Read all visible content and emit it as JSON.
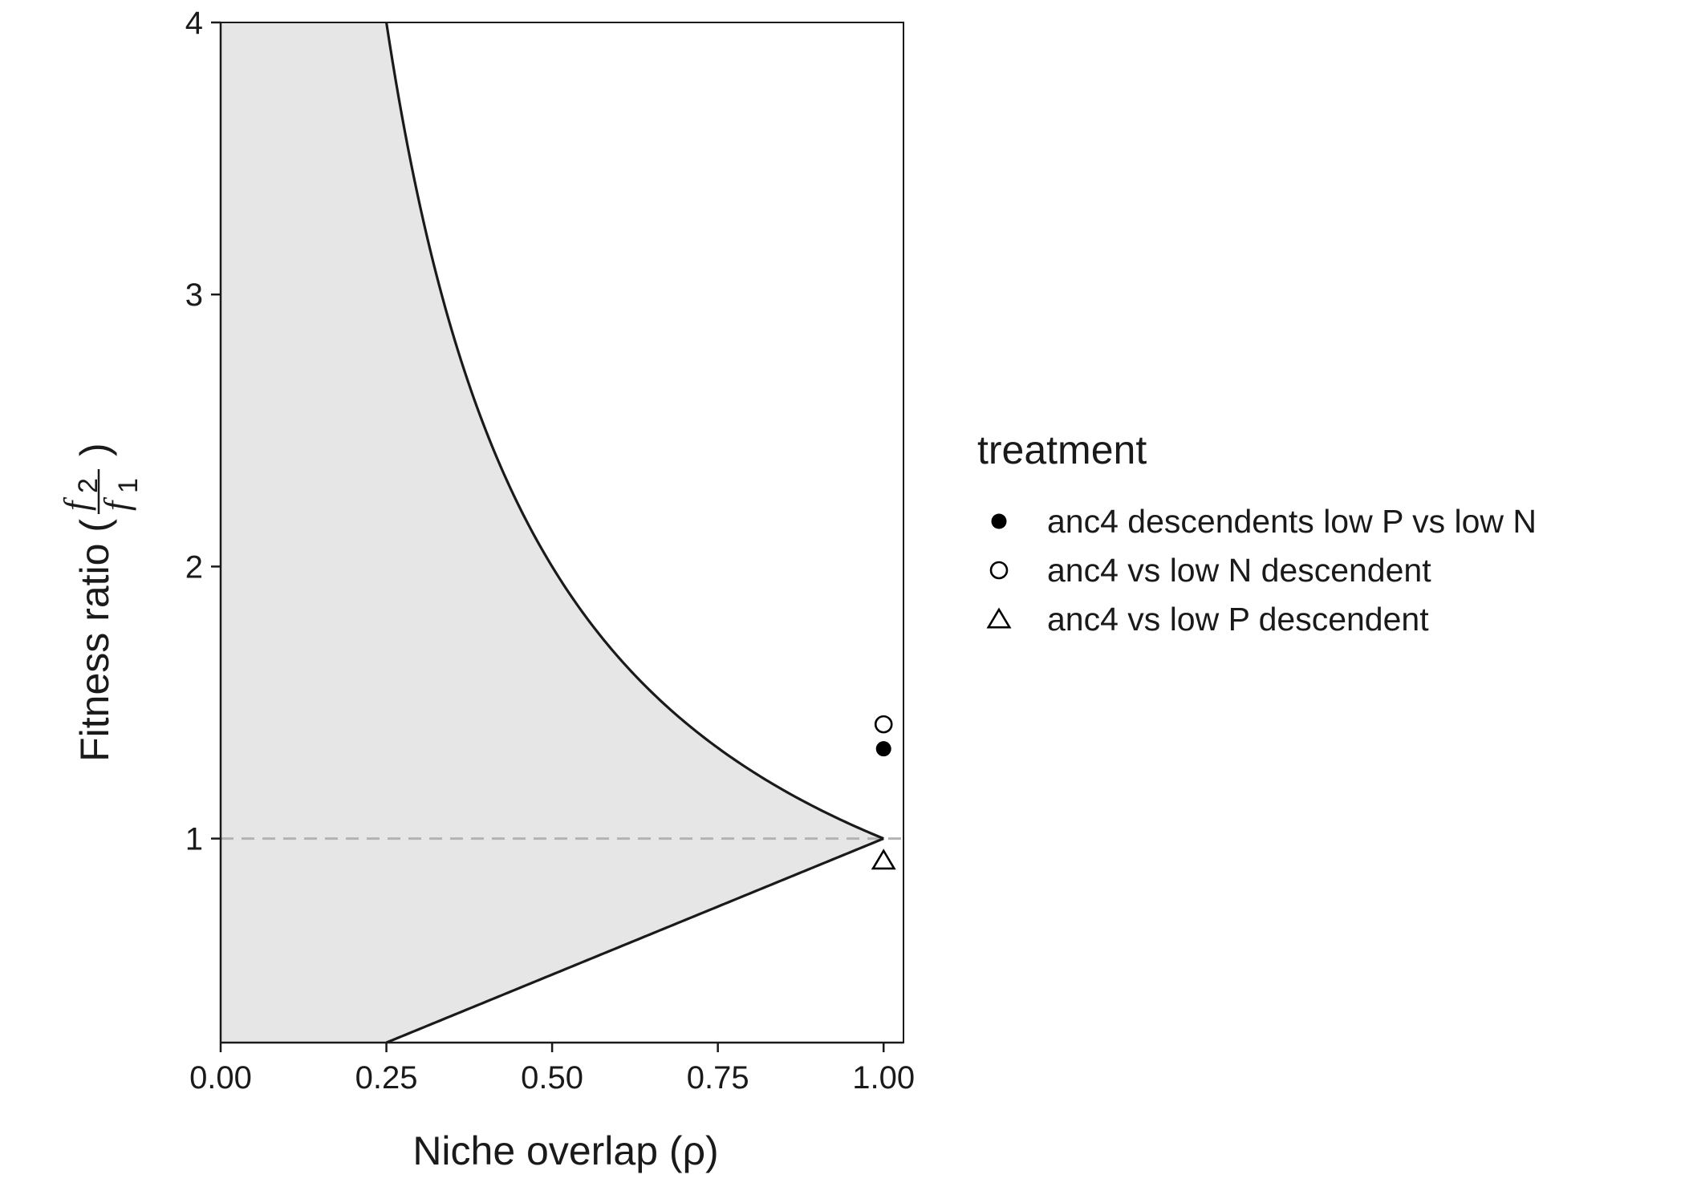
{
  "chart_data": {
    "type": "scatter",
    "xlabel": "Niche overlap (ρ)",
    "ylabel": "Fitness ratio (",
    "ylabel_fraction": {
      "numerator": "f",
      "numerator_sub": "2",
      "denominator": "f",
      "denominator_sub": "1",
      "close": ")"
    },
    "xlim": [
      0,
      1.03
    ],
    "ylim": [
      0.25,
      4
    ],
    "x_ticks": [
      0,
      0.25,
      0.5,
      0.75,
      1
    ],
    "x_tick_labels": [
      "0.00",
      "0.25",
      "0.50",
      "0.75",
      "1.00"
    ],
    "y_ticks": [
      1,
      2,
      3,
      4
    ],
    "y_tick_labels": [
      "1",
      "2",
      "3",
      "4"
    ],
    "grid": false,
    "coexistence_region": {
      "upper_curve": "1/ρ",
      "lower_curve": "ρ",
      "fill": "#e6e6e6",
      "line_color": "#1a1a1a"
    },
    "reference_line": {
      "y": 1,
      "style": "dashed",
      "color": "#b3b3b3"
    },
    "legend": {
      "title": "treatment",
      "placement": "right",
      "entries": [
        {
          "label": "anc4 descendents low P vs low N",
          "shape": "filled-circle"
        },
        {
          "label": "anc4 vs low N descendent",
          "shape": "open-circle"
        },
        {
          "label": "anc4 vs low P descendent",
          "shape": "open-triangle"
        }
      ]
    },
    "series": [
      {
        "name": "anc4 descendents low P vs low N",
        "shape": "filled-circle",
        "points": [
          {
            "x": 1.0,
            "y": 1.33
          }
        ]
      },
      {
        "name": "anc4 vs low N descendent",
        "shape": "open-circle",
        "points": [
          {
            "x": 1.0,
            "y": 1.42
          }
        ]
      },
      {
        "name": "anc4 vs low P descendent",
        "shape": "open-triangle",
        "points": [
          {
            "x": 1.0,
            "y": 0.92
          }
        ]
      }
    ]
  }
}
